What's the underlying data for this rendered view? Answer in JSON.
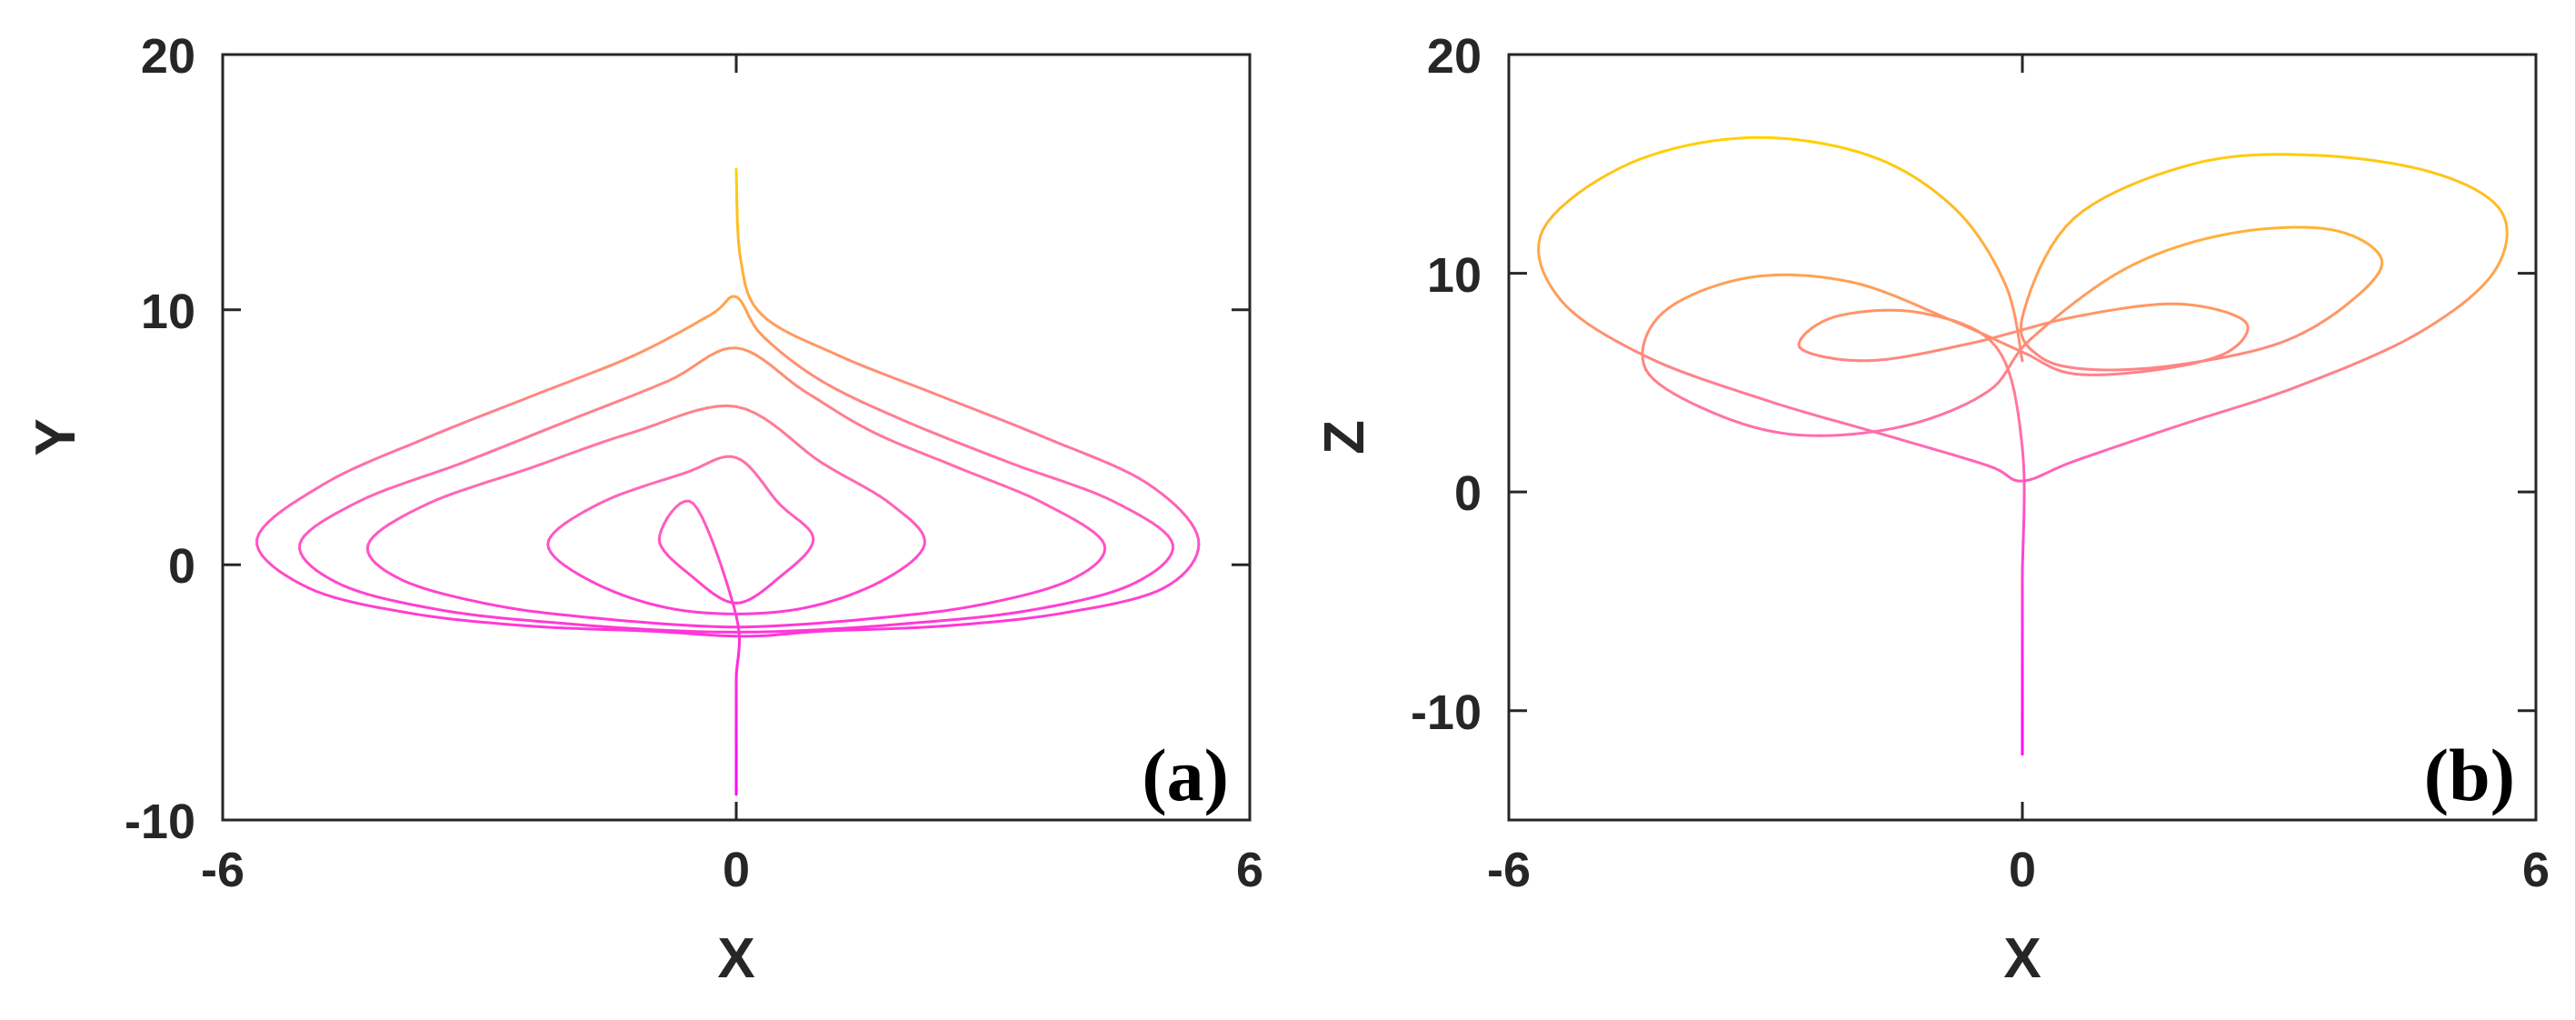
{
  "chart_data": [
    {
      "type": "line",
      "title": "",
      "panel_label": "(a)",
      "xlabel": "X",
      "ylabel": "Y",
      "xlim": [
        -6,
        6
      ],
      "ylim": [
        -10,
        20
      ],
      "xticks": [
        -6,
        0,
        6
      ],
      "yticks": [
        -10,
        0,
        10,
        20
      ],
      "xtick_labels": [
        "-6",
        "0",
        "6"
      ],
      "ytick_labels": [
        "-10",
        "0",
        "10",
        "20"
      ],
      "grid": false,
      "legend": "none",
      "colormap": [
        "#ff00ff",
        "#ff69b4",
        "#ffd200"
      ],
      "series": [
        {
          "x": [
            0,
            0.05,
            0.3,
            1.2,
            2.4,
            3.6,
            4.8,
            5.4,
            5.0,
            3.8,
            2.4,
            1.0,
            0.1,
            -1.0,
            -2.4,
            -3.8,
            -5.0,
            -5.6,
            -4.8,
            -3.6,
            -2.4,
            -1.2,
            -0.3,
            0,
            0.3,
            1.0,
            2.0,
            3.2,
            4.4,
            5.1,
            4.6,
            3.4,
            2.0,
            0.6,
            -0.6,
            -2.0,
            -3.4,
            -4.6,
            -5.1,
            -4.4,
            -3.2,
            -2.0,
            -0.8,
            0,
            0.8,
            1.6,
            2.6,
            3.6,
            4.3,
            3.9,
            2.8,
            1.6,
            0.4,
            -0.4,
            -1.6,
            -2.8,
            -3.9,
            -4.3,
            -3.6,
            -2.4,
            -1.2,
            0,
            1.0,
            1.8,
            2.2,
            1.6,
            0.6,
            -0.6,
            -1.6,
            -2.2,
            -1.6,
            -0.6,
            0,
            0.5,
            0.9,
            0.5,
            0,
            -0.5,
            -0.9,
            -0.5,
            0,
            0,
            0,
            0
          ],
          "y": [
            15.5,
            12.0,
            9.8,
            8.2,
            6.6,
            5.0,
            3.2,
            1.0,
            -0.9,
            -1.9,
            -2.4,
            -2.6,
            -2.8,
            -2.6,
            -2.4,
            -1.9,
            -0.9,
            1.0,
            3.2,
            5.0,
            6.6,
            8.2,
            9.8,
            10.5,
            9.0,
            7.2,
            5.6,
            4.0,
            2.5,
            0.8,
            -0.8,
            -1.8,
            -2.3,
            -2.6,
            -2.6,
            -2.3,
            -1.8,
            -0.8,
            0.8,
            2.5,
            4.0,
            5.6,
            7.2,
            8.5,
            6.8,
            5.2,
            3.8,
            2.4,
            0.8,
            -0.6,
            -1.6,
            -2.1,
            -2.4,
            -2.4,
            -2.1,
            -1.6,
            -0.6,
            0.8,
            2.4,
            3.8,
            5.2,
            6.2,
            4.0,
            2.4,
            0.8,
            -0.8,
            -1.8,
            -1.8,
            -0.8,
            0.8,
            2.4,
            3.6,
            4.2,
            2.4,
            1.0,
            -0.5,
            -1.5,
            -0.5,
            1.0,
            2.4,
            -2.0,
            -4.5,
            -7.0,
            -9.0
          ]
        }
      ]
    },
    {
      "type": "line",
      "title": "",
      "panel_label": "(b)",
      "xlabel": "X",
      "ylabel": "Z",
      "xlim": [
        -6,
        6
      ],
      "ylim": [
        -15,
        20
      ],
      "xticks": [
        -6,
        0,
        6
      ],
      "yticks": [
        -10,
        0,
        10,
        20
      ],
      "xtick_labels": [
        "-6",
        "0",
        "6"
      ],
      "ytick_labels": [
        "-10",
        "0",
        "10",
        "20"
      ],
      "grid": false,
      "legend": "none",
      "colormap": [
        "#ff00ff",
        "#ff69b4",
        "#ffd200"
      ],
      "series": [
        {
          "x": [
            0,
            -0.2,
            -0.8,
            -1.8,
            -3.2,
            -4.6,
            -5.6,
            -5.4,
            -4.4,
            -3.0,
            -1.6,
            -0.4,
            0,
            0.6,
            1.8,
            3.2,
            4.6,
            5.5,
            5.6,
            4.8,
            3.4,
            2.0,
            0.6,
            0,
            0.2,
            0.8,
            1.8,
            3.0,
            3.8,
            4.2,
            3.6,
            2.4,
            1.2,
            0.1,
            -0.4,
            -1.4,
            -2.6,
            -3.6,
            -4.4,
            -4.2,
            -3.2,
            -2.0,
            -0.8,
            0,
            0.6,
            1.6,
            2.4,
            2.6,
            1.8,
            0.6,
            -0.6,
            -1.8,
            -2.6,
            -2.2,
            -1.2,
            -0.3,
            0,
            0,
            0,
            0
          ],
          "y": [
            6,
            9.5,
            13.0,
            15.4,
            16.2,
            15.0,
            12.0,
            8.8,
            6.2,
            4.2,
            2.6,
            1.2,
            0.5,
            1.4,
            3.0,
            4.8,
            7.2,
            10.0,
            12.8,
            14.6,
            15.4,
            15.0,
            12.5,
            8.0,
            6.2,
            5.6,
            5.8,
            6.8,
            8.6,
            10.6,
            12.0,
            11.8,
            10.2,
            7.0,
            4.6,
            3.0,
            2.6,
            3.6,
            5.6,
            8.2,
            9.8,
            9.6,
            7.8,
            6.4,
            5.4,
            5.6,
            6.4,
            7.8,
            8.6,
            8.0,
            6.8,
            6.0,
            6.6,
            8.0,
            8.2,
            6.6,
            2.0,
            -4.0,
            -8.5,
            -12.0
          ]
        }
      ]
    }
  ]
}
